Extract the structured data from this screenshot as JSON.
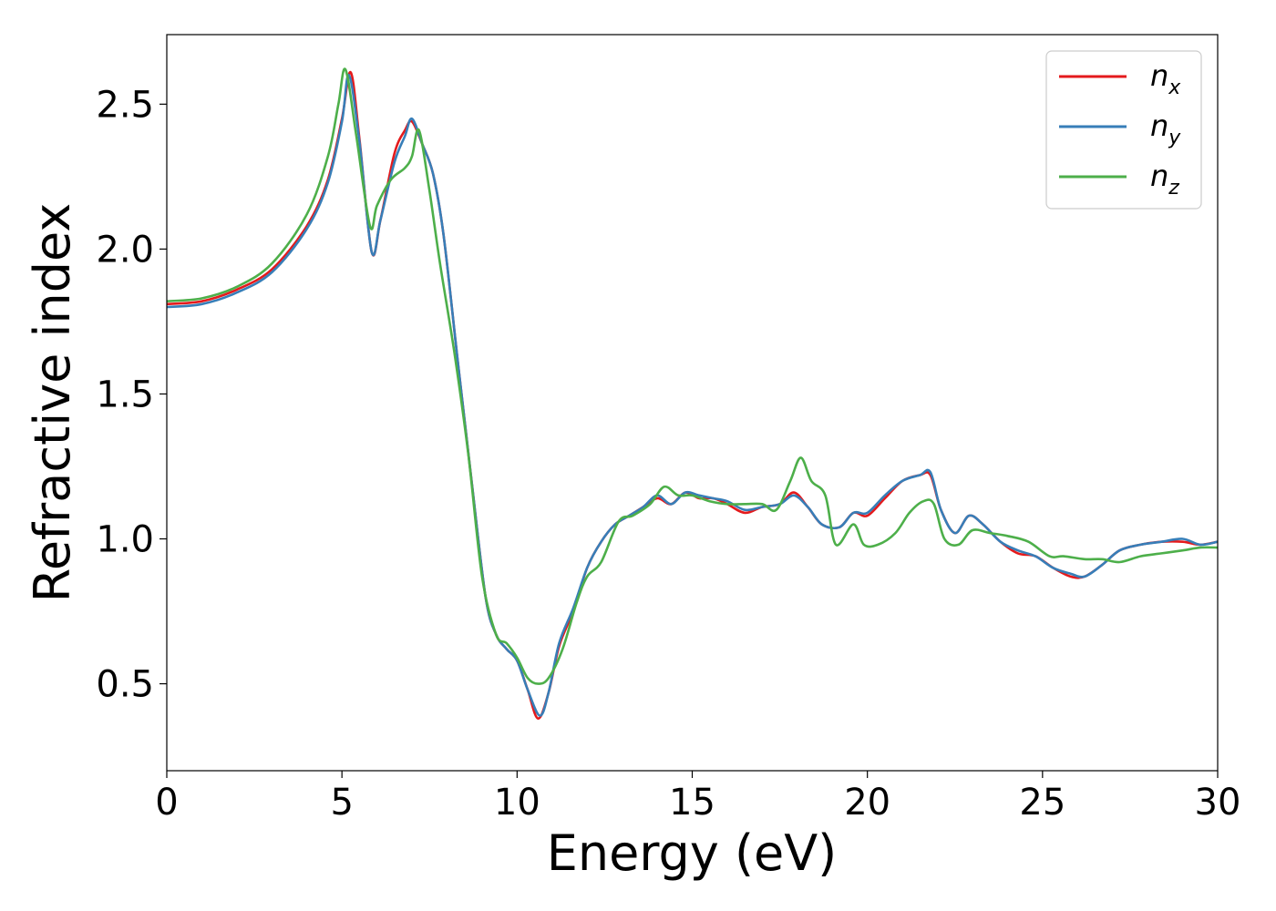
{
  "chart_data": {
    "type": "line",
    "title": "",
    "xlabel": "Energy (eV)",
    "ylabel": "Refractive index",
    "xlim": [
      0,
      30
    ],
    "ylim": [
      0.2,
      2.74
    ],
    "xticks": [
      "0",
      "5",
      "10",
      "15",
      "20",
      "25",
      "30"
    ],
    "yticks": [
      "0.5",
      "1.0",
      "1.5",
      "2.0",
      "2.5"
    ],
    "grid": false,
    "legend_position": "top-right",
    "series": [
      {
        "name": "n",
        "subscript": "x",
        "color": "#e41a1c",
        "points": [
          [
            0,
            1.81
          ],
          [
            1,
            1.82
          ],
          [
            2,
            1.86
          ],
          [
            3,
            1.93
          ],
          [
            4,
            2.08
          ],
          [
            4.6,
            2.24
          ],
          [
            5.0,
            2.45
          ],
          [
            5.25,
            2.61
          ],
          [
            5.5,
            2.38
          ],
          [
            5.85,
            1.99
          ],
          [
            6.1,
            2.1
          ],
          [
            6.5,
            2.33
          ],
          [
            6.8,
            2.41
          ],
          [
            7.0,
            2.44
          ],
          [
            7.3,
            2.36
          ],
          [
            7.6,
            2.26
          ],
          [
            7.9,
            2.05
          ],
          [
            8.3,
            1.62
          ],
          [
            8.7,
            1.2
          ],
          [
            9.1,
            0.8
          ],
          [
            9.4,
            0.67
          ],
          [
            9.7,
            0.62
          ],
          [
            10.0,
            0.58
          ],
          [
            10.3,
            0.48
          ],
          [
            10.6,
            0.38
          ],
          [
            10.9,
            0.47
          ],
          [
            11.2,
            0.63
          ],
          [
            11.6,
            0.75
          ],
          [
            12.0,
            0.9
          ],
          [
            12.4,
            0.99
          ],
          [
            12.8,
            1.05
          ],
          [
            13.2,
            1.08
          ],
          [
            13.6,
            1.11
          ],
          [
            14.0,
            1.14
          ],
          [
            14.4,
            1.12
          ],
          [
            14.8,
            1.16
          ],
          [
            15.2,
            1.14
          ],
          [
            15.6,
            1.14
          ],
          [
            16.0,
            1.12
          ],
          [
            16.5,
            1.09
          ],
          [
            17.0,
            1.11
          ],
          [
            17.5,
            1.12
          ],
          [
            17.9,
            1.16
          ],
          [
            18.3,
            1.11
          ],
          [
            18.7,
            1.05
          ],
          [
            19.2,
            1.04
          ],
          [
            19.6,
            1.09
          ],
          [
            20.0,
            1.08
          ],
          [
            20.5,
            1.14
          ],
          [
            21.0,
            1.2
          ],
          [
            21.5,
            1.22
          ],
          [
            21.8,
            1.22
          ],
          [
            22.1,
            1.1
          ],
          [
            22.5,
            1.02
          ],
          [
            22.9,
            1.08
          ],
          [
            23.3,
            1.05
          ],
          [
            23.8,
            0.99
          ],
          [
            24.3,
            0.95
          ],
          [
            24.8,
            0.94
          ],
          [
            25.3,
            0.9
          ],
          [
            25.8,
            0.87
          ],
          [
            26.2,
            0.87
          ],
          [
            26.7,
            0.91
          ],
          [
            27.2,
            0.96
          ],
          [
            27.8,
            0.98
          ],
          [
            28.4,
            0.99
          ],
          [
            29.0,
            0.99
          ],
          [
            29.5,
            0.98
          ],
          [
            30,
            0.99
          ]
        ]
      },
      {
        "name": "n",
        "subscript": "y",
        "color": "#377eb8",
        "points": [
          [
            0,
            1.8
          ],
          [
            1,
            1.81
          ],
          [
            2,
            1.85
          ],
          [
            3,
            1.92
          ],
          [
            4,
            2.07
          ],
          [
            4.6,
            2.23
          ],
          [
            5.0,
            2.44
          ],
          [
            5.2,
            2.6
          ],
          [
            5.5,
            2.37
          ],
          [
            5.85,
            1.99
          ],
          [
            6.1,
            2.1
          ],
          [
            6.5,
            2.3
          ],
          [
            6.8,
            2.39
          ],
          [
            7.0,
            2.45
          ],
          [
            7.3,
            2.36
          ],
          [
            7.6,
            2.26
          ],
          [
            7.9,
            2.05
          ],
          [
            8.3,
            1.62
          ],
          [
            8.7,
            1.2
          ],
          [
            9.1,
            0.8
          ],
          [
            9.4,
            0.67
          ],
          [
            9.7,
            0.62
          ],
          [
            10.0,
            0.58
          ],
          [
            10.3,
            0.48
          ],
          [
            10.65,
            0.39
          ],
          [
            10.9,
            0.47
          ],
          [
            11.2,
            0.64
          ],
          [
            11.6,
            0.76
          ],
          [
            12.0,
            0.9
          ],
          [
            12.4,
            0.99
          ],
          [
            12.8,
            1.05
          ],
          [
            13.2,
            1.08
          ],
          [
            13.6,
            1.11
          ],
          [
            14.0,
            1.15
          ],
          [
            14.4,
            1.12
          ],
          [
            14.8,
            1.16
          ],
          [
            15.2,
            1.15
          ],
          [
            15.6,
            1.14
          ],
          [
            16.0,
            1.13
          ],
          [
            16.5,
            1.1
          ],
          [
            17.0,
            1.11
          ],
          [
            17.5,
            1.12
          ],
          [
            17.9,
            1.15
          ],
          [
            18.3,
            1.11
          ],
          [
            18.7,
            1.05
          ],
          [
            19.2,
            1.04
          ],
          [
            19.6,
            1.09
          ],
          [
            20.0,
            1.09
          ],
          [
            20.5,
            1.15
          ],
          [
            21.0,
            1.2
          ],
          [
            21.5,
            1.22
          ],
          [
            21.8,
            1.23
          ],
          [
            22.1,
            1.1
          ],
          [
            22.5,
            1.02
          ],
          [
            22.9,
            1.08
          ],
          [
            23.3,
            1.05
          ],
          [
            23.8,
            0.99
          ],
          [
            24.3,
            0.96
          ],
          [
            24.8,
            0.94
          ],
          [
            25.3,
            0.9
          ],
          [
            25.8,
            0.88
          ],
          [
            26.2,
            0.87
          ],
          [
            26.7,
            0.91
          ],
          [
            27.2,
            0.96
          ],
          [
            27.8,
            0.98
          ],
          [
            28.4,
            0.99
          ],
          [
            29.0,
            1.0
          ],
          [
            29.5,
            0.98
          ],
          [
            30,
            0.99
          ]
        ]
      },
      {
        "name": "n",
        "subscript": "z",
        "color": "#4daf4a",
        "points": [
          [
            0,
            1.82
          ],
          [
            1,
            1.83
          ],
          [
            2,
            1.87
          ],
          [
            3,
            1.95
          ],
          [
            4,
            2.12
          ],
          [
            4.6,
            2.32
          ],
          [
            4.9,
            2.5
          ],
          [
            5.1,
            2.62
          ],
          [
            5.4,
            2.4
          ],
          [
            5.8,
            2.08
          ],
          [
            6.0,
            2.15
          ],
          [
            6.4,
            2.24
          ],
          [
            6.8,
            2.28
          ],
          [
            7.0,
            2.32
          ],
          [
            7.2,
            2.41
          ],
          [
            7.5,
            2.2
          ],
          [
            7.8,
            1.95
          ],
          [
            8.2,
            1.65
          ],
          [
            8.6,
            1.3
          ],
          [
            9.0,
            0.87
          ],
          [
            9.4,
            0.67
          ],
          [
            9.7,
            0.64
          ],
          [
            10.0,
            0.59
          ],
          [
            10.3,
            0.52
          ],
          [
            10.6,
            0.5
          ],
          [
            10.9,
            0.52
          ],
          [
            11.3,
            0.62
          ],
          [
            11.7,
            0.78
          ],
          [
            12.0,
            0.87
          ],
          [
            12.4,
            0.92
          ],
          [
            12.9,
            1.06
          ],
          [
            13.3,
            1.08
          ],
          [
            13.8,
            1.12
          ],
          [
            14.2,
            1.18
          ],
          [
            14.6,
            1.15
          ],
          [
            15.0,
            1.15
          ],
          [
            15.5,
            1.13
          ],
          [
            16.0,
            1.12
          ],
          [
            16.5,
            1.12
          ],
          [
            17.0,
            1.12
          ],
          [
            17.4,
            1.1
          ],
          [
            17.8,
            1.2
          ],
          [
            18.1,
            1.28
          ],
          [
            18.4,
            1.2
          ],
          [
            18.8,
            1.15
          ],
          [
            19.1,
            0.98
          ],
          [
            19.6,
            1.05
          ],
          [
            19.9,
            0.98
          ],
          [
            20.3,
            0.98
          ],
          [
            20.8,
            1.02
          ],
          [
            21.2,
            1.09
          ],
          [
            21.6,
            1.13
          ],
          [
            21.9,
            1.12
          ],
          [
            22.2,
            1.0
          ],
          [
            22.6,
            0.98
          ],
          [
            23.0,
            1.03
          ],
          [
            23.5,
            1.02
          ],
          [
            24.0,
            1.01
          ],
          [
            24.6,
            0.99
          ],
          [
            25.2,
            0.94
          ],
          [
            25.6,
            0.94
          ],
          [
            26.2,
            0.93
          ],
          [
            26.7,
            0.93
          ],
          [
            27.2,
            0.92
          ],
          [
            27.8,
            0.94
          ],
          [
            28.4,
            0.95
          ],
          [
            29.0,
            0.96
          ],
          [
            29.5,
            0.97
          ],
          [
            30,
            0.97
          ]
        ]
      }
    ]
  }
}
